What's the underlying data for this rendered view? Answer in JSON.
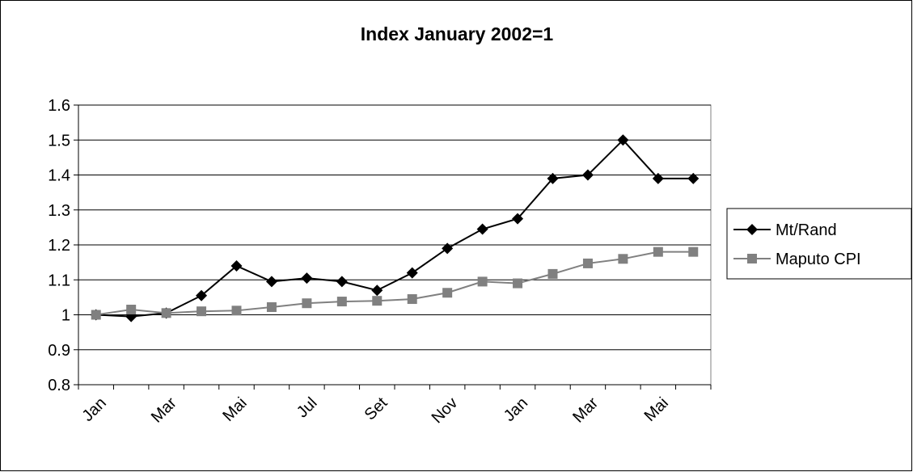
{
  "chart_data": {
    "type": "line",
    "title": "Index January 2002=1",
    "categories": [
      "Jan",
      null,
      "Mar",
      null,
      "Mai",
      null,
      "Jul",
      null,
      "Set",
      null,
      "Nov",
      null,
      "Jan",
      null,
      "Mar",
      null,
      "Mai",
      null
    ],
    "series": [
      {
        "name": "Mt/Rand",
        "color": "#000000",
        "marker": "diamond",
        "values": [
          1,
          0.995,
          1.005,
          1.055,
          1.14,
          1.095,
          1.105,
          1.095,
          1.07,
          1.12,
          1.19,
          1.245,
          1.275,
          1.39,
          1.4,
          1.5,
          1.39,
          1.39
        ]
      },
      {
        "name": "Maputo CPI",
        "color": "#808080",
        "marker": "square",
        "values": [
          1,
          1.015,
          1.005,
          1.01,
          1.012,
          1.022,
          1.033,
          1.038,
          1.04,
          1.045,
          1.063,
          1.095,
          1.09,
          1.117,
          1.147,
          1.16,
          1.18,
          1.18
        ]
      }
    ],
    "ylim": [
      0.8,
      1.6
    ],
    "yticks": [
      0.8,
      0.9,
      1,
      1.1,
      1.2,
      1.3,
      1.4,
      1.5,
      1.6
    ],
    "grid": true,
    "legend": "right"
  }
}
